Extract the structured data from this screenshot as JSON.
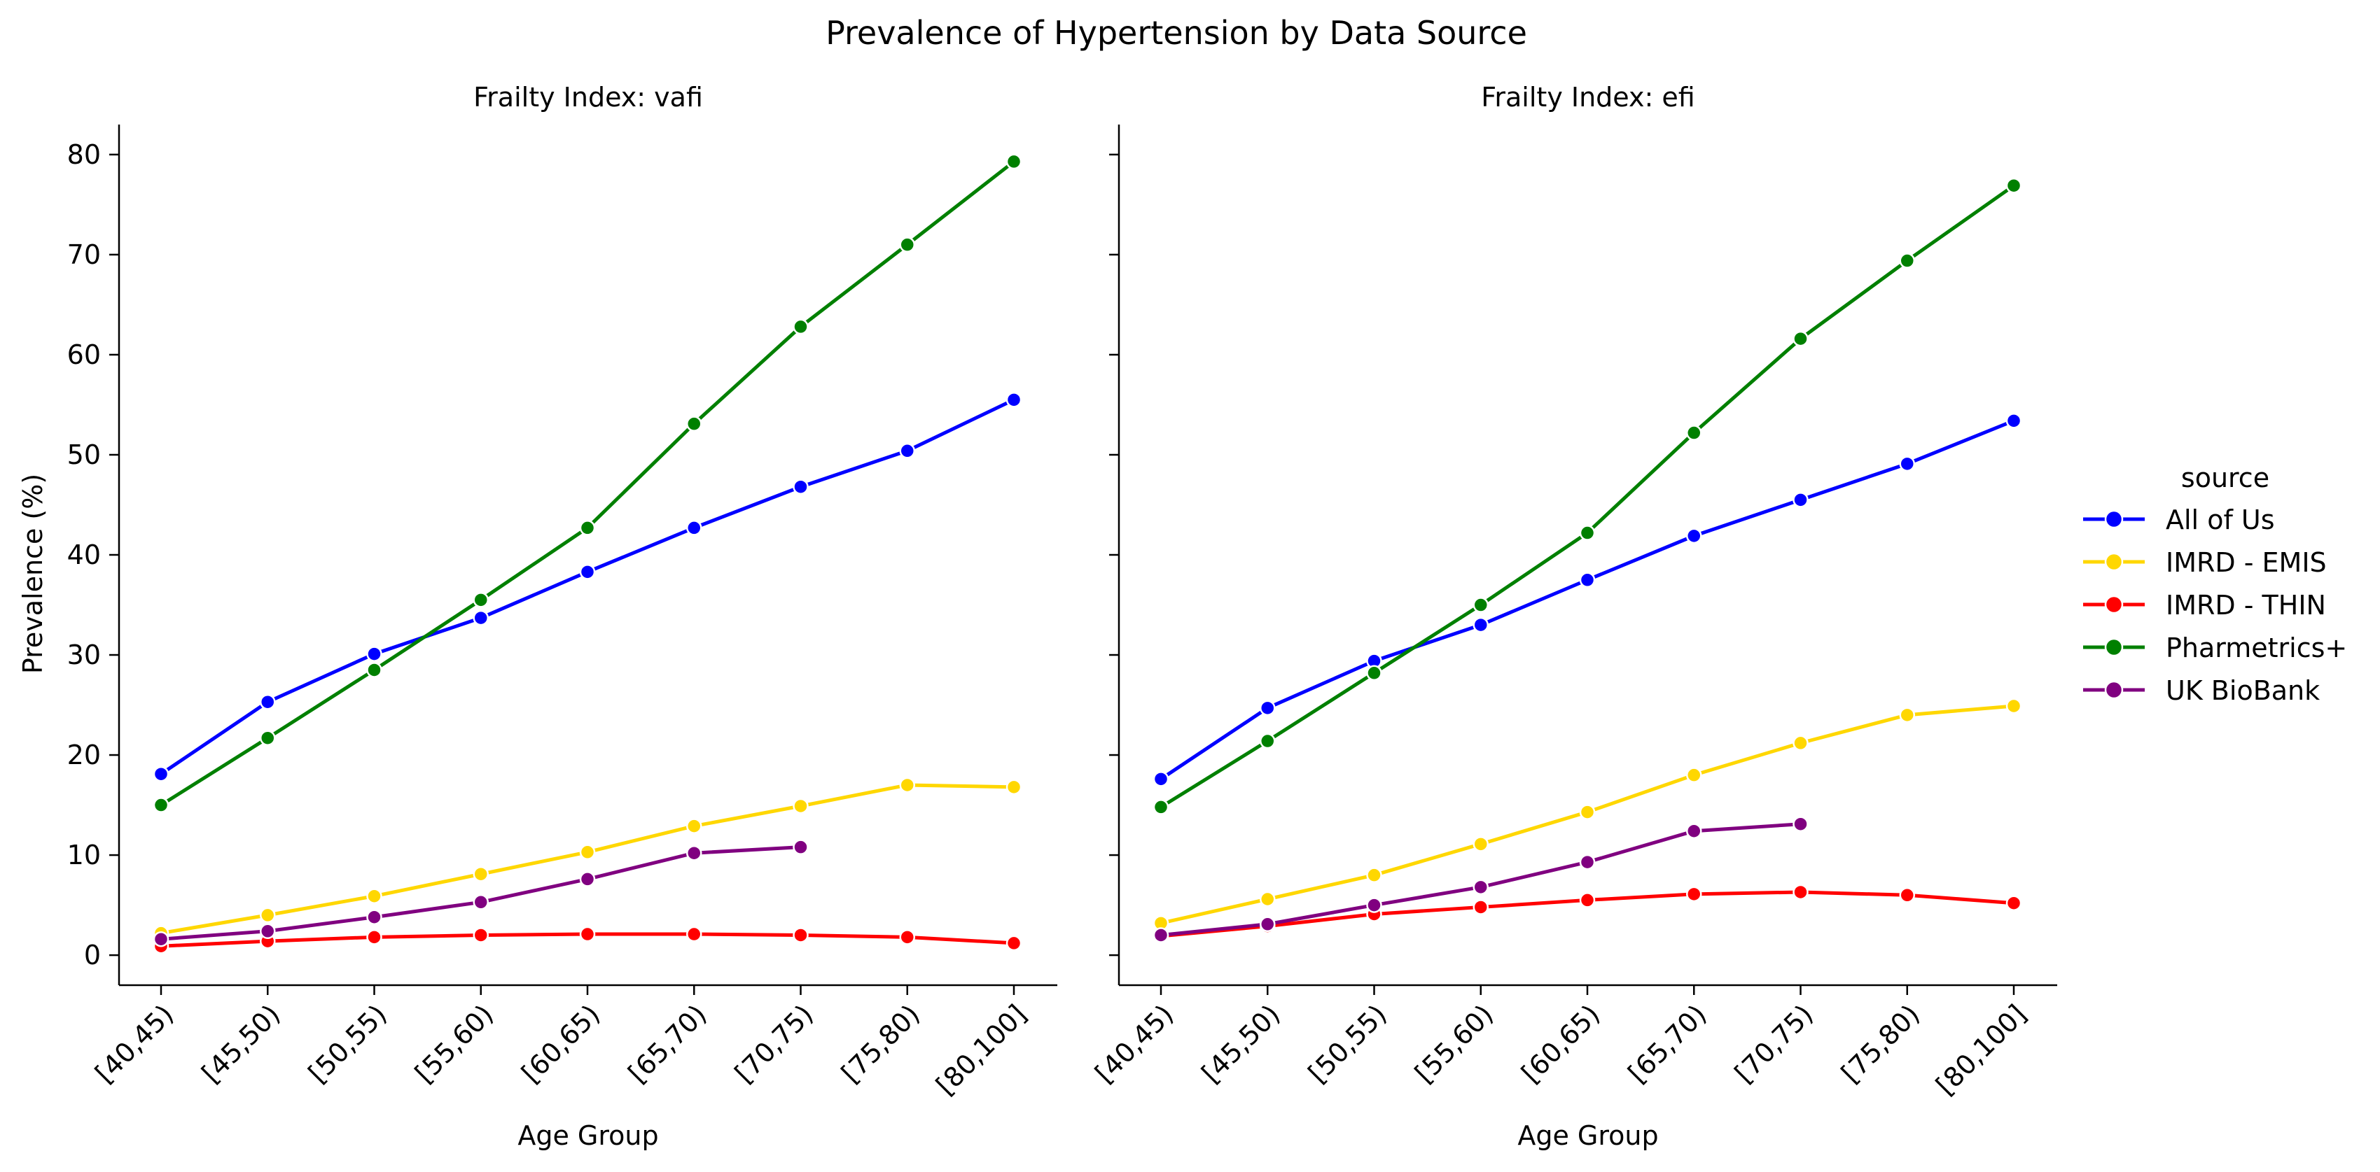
{
  "chart_data": {
    "type": "line",
    "title": "Prevalence of Hypertension by Data Source",
    "xlabel": "Age Group",
    "ylabel": "Prevalence (%)",
    "ylim": [
      -3,
      83
    ],
    "yticks": [
      0,
      10,
      20,
      30,
      40,
      50,
      60,
      70,
      80
    ],
    "categories": [
      "[40,45)",
      "[45,50)",
      "[50,55)",
      "[55,60)",
      "[60,65)",
      "[65,70)",
      "[70,75)",
      "[75,80)",
      "[80,100]"
    ],
    "grid": false,
    "legend": {
      "title": "source",
      "placement": "right",
      "entries": [
        {
          "name": "All of Us",
          "color": "#0000ff"
        },
        {
          "name": "IMRD - EMIS",
          "color": "#ffd700"
        },
        {
          "name": "IMRD - THIN",
          "color": "#ff0000"
        },
        {
          "name": "Pharmetrics+",
          "color": "#008000"
        },
        {
          "name": "UK BioBank",
          "color": "#800080"
        }
      ]
    },
    "panels": [
      {
        "title": "Frailty Index: vafi",
        "series": [
          {
            "name": "All of Us",
            "color": "#0000ff",
            "values": [
              18.1,
              25.3,
              30.1,
              33.7,
              38.3,
              42.7,
              46.8,
              50.4,
              55.5
            ]
          },
          {
            "name": "IMRD - EMIS",
            "color": "#ffd700",
            "values": [
              2.2,
              4.0,
              5.9,
              8.1,
              10.3,
              12.9,
              14.9,
              17.0,
              16.8
            ]
          },
          {
            "name": "IMRD - THIN",
            "color": "#ff0000",
            "values": [
              0.9,
              1.4,
              1.8,
              2.0,
              2.1,
              2.1,
              2.0,
              1.8,
              1.2
            ]
          },
          {
            "name": "Pharmetrics+",
            "color": "#008000",
            "values": [
              15.0,
              21.7,
              28.5,
              35.5,
              42.7,
              53.1,
              62.8,
              71.0,
              79.3
            ]
          },
          {
            "name": "UK BioBank",
            "color": "#800080",
            "values": [
              1.6,
              2.4,
              3.8,
              5.3,
              7.6,
              10.2,
              10.8,
              null,
              null
            ]
          }
        ]
      },
      {
        "title": "Frailty Index: efi",
        "series": [
          {
            "name": "All of Us",
            "color": "#0000ff",
            "values": [
              17.6,
              24.7,
              29.4,
              33.0,
              37.5,
              41.9,
              45.5,
              49.1,
              53.4
            ]
          },
          {
            "name": "IMRD - EMIS",
            "color": "#ffd700",
            "values": [
              3.2,
              5.6,
              8.0,
              11.1,
              14.3,
              18.0,
              21.2,
              24.0,
              24.9
            ]
          },
          {
            "name": "IMRD - THIN",
            "color": "#ff0000",
            "values": [
              1.9,
              2.9,
              4.1,
              4.8,
              5.5,
              6.1,
              6.3,
              6.0,
              5.2
            ]
          },
          {
            "name": "Pharmetrics+",
            "color": "#008000",
            "values": [
              14.8,
              21.4,
              28.2,
              35.0,
              42.2,
              52.2,
              61.6,
              69.4,
              76.9
            ]
          },
          {
            "name": "UK BioBank",
            "color": "#800080",
            "values": [
              2.0,
              3.1,
              5.0,
              6.8,
              9.3,
              12.4,
              13.1,
              null,
              null
            ]
          }
        ]
      }
    ]
  }
}
